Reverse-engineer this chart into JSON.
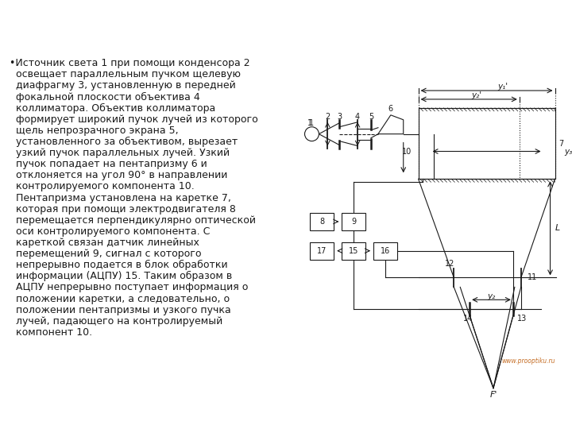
{
  "bg_color": "#ffffff",
  "text_color": "#1a1a1a",
  "diagram_color": "#1a1a1a",
  "font_size_text": 9.0,
  "watermark": "www.prooptiku.ru",
  "text_lines": [
    "•Источник света 1 при помощи конденсора 2",
    "  освещает параллельным пучком щелевую",
    "  диафрагму 3, установленную в передней",
    "  фокальной плоскости объектива 4",
    "  коллиматора. Объектив коллиматора",
    "  формирует широкий пучок лучей из которого",
    "  щель непрозрачного экрана 5,",
    "  установленного за объективом, вырезает",
    "  узкий пучок параллельных лучей. Узкий",
    "  пучок попадает на пентапризму 6 и",
    "  отклоняется на угол 90° в направлении",
    "  контролируемого компонента 10.",
    "  Пентапризма установлена на каретке 7,",
    "  которая при помощи электродвигателя 8",
    "  перемещается перпендикулярно оптической",
    "  оси контролируемого компонента. С",
    "  кареткой связан датчик линейных",
    "  перемещений 9, сигнал с которого",
    "  непрерывно подается в блок обработки",
    "  информации (АЦПУ) 15. Таким образом в",
    "  АЦПУ непрерывно поступает информация о",
    "  положении каретки, а следовательно, о",
    "  положении пентапризмы и узкого пучка",
    "  лучей, падающего на контролируемый",
    "  компонент 10."
  ]
}
